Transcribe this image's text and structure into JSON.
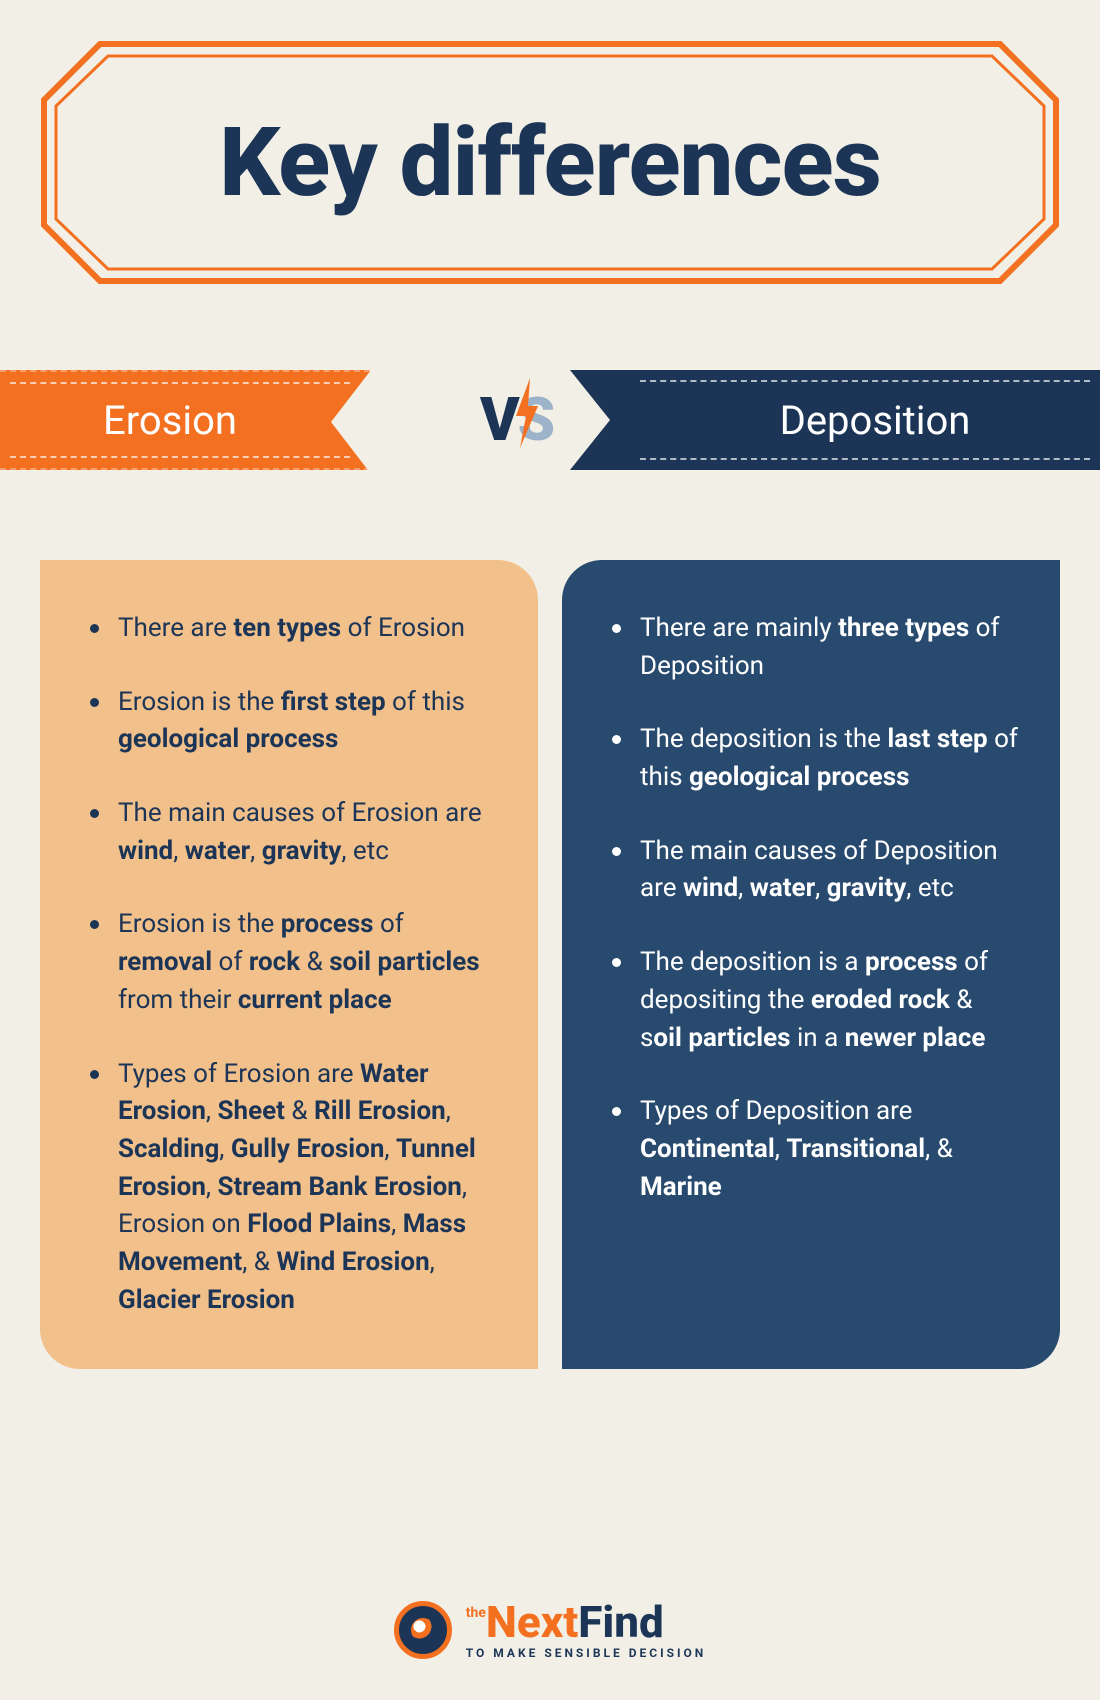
{
  "colors": {
    "background": "#f2efe6",
    "navy": "#1c3557",
    "navy_card": "#284a6e",
    "orange": "#f37021",
    "peach_card": "#f1c08b",
    "vs_s": "#9db3c9",
    "white": "#ffffff"
  },
  "title": {
    "text": "Key differences",
    "fontsize": 96,
    "color": "#1c3557",
    "frame_stroke": "#f37021",
    "frame_stroke_width": 6
  },
  "ribbons": {
    "left": {
      "label": "Erosion",
      "bg": "#f37021",
      "text_color": "#ffffff",
      "fontsize": 40
    },
    "right": {
      "label": "Deposition",
      "bg": "#1c3557",
      "text_color": "#ffffff",
      "fontsize": 40
    },
    "vs": {
      "v": "V",
      "s": "S",
      "v_color": "#1c3557",
      "s_color": "#9db3c9",
      "bolt_color": "#f37021",
      "fontsize": 60
    }
  },
  "cards": {
    "left": {
      "bg": "#f1c08b",
      "text_color": "#1c3557",
      "bullet_color": "#1c3557",
      "fontsize": 26,
      "items": [
        "There are <b>ten types</b> of Erosion",
        "Erosion is the <b>first step</b> of this <b>geological process</b>",
        "The main causes of Erosion are <b>wind</b>, <b>water</b>, <b>gravity</b>, etc",
        "Erosion is the <b>process</b> of <b>removal</b> of <b>rock</b> & <b>soil particles</b> from their <b>current place</b>",
        "Types of Erosion are <b>Water Erosion</b>, <b>Sheet</b> & <b>Rill Erosion</b>, <b>Scalding</b>, <b>Gully Erosion</b>, <b>Tunnel Erosion</b>, <b>Stream Bank Erosion</b>, Erosion on <b>Flood Plains</b>, <b>Mass Movement</b>, & <b>Wind Erosion</b>, <b>Glacier Erosion</b>"
      ]
    },
    "right": {
      "bg": "#284a6e",
      "text_color": "#ffffff",
      "bullet_color": "#ffffff",
      "fontsize": 26,
      "items": [
        "There are mainly <b>three types</b> of Deposition",
        "The deposition is the <b>last step</b> of this <b>geological process</b>",
        "The main causes of Deposition are <b>wind</b>, <b>water</b>, <b>gravity</b>, etc",
        "The deposition is a <b>process</b> of depositing the <b>eroded rock</b> & s<b>oil particles</b> in a <b>newer place</b>",
        "Types of Deposition are <b>Continental</b>, <b>Transitional</b>, & <b>Marine</b>"
      ]
    }
  },
  "footer": {
    "the": "the",
    "brand_next": "Next",
    "brand_find": "Find",
    "tagline": "TO MAKE SENSIBLE DECISION",
    "ring_color": "#f37021",
    "circle_color": "#1c3557"
  }
}
